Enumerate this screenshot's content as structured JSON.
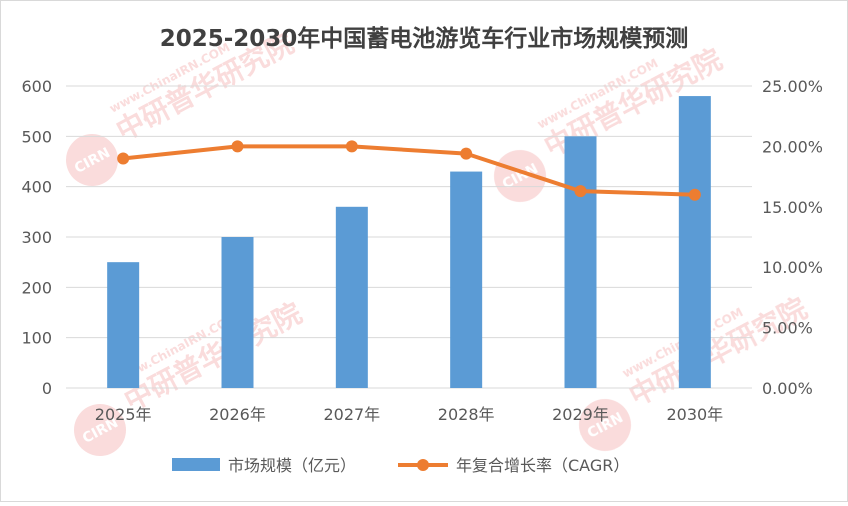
{
  "chart_data": {
    "type": "bar+line",
    "title": "2025-2030年中国蓄电池游览车行业市场规模预测",
    "categories": [
      "2025年",
      "2026年",
      "2027年",
      "2028年",
      "2029年",
      "2030年"
    ],
    "series": [
      {
        "name": "市场规模（亿元）",
        "type": "bar",
        "axis": "left",
        "values": [
          250,
          300,
          360,
          430,
          500,
          580
        ]
      },
      {
        "name": "年复合增长率（CAGR）",
        "type": "line",
        "axis": "right",
        "values": [
          0.19,
          0.2,
          0.2,
          0.194,
          0.163,
          0.16
        ]
      }
    ],
    "y_left": {
      "ylim": [
        0,
        600
      ],
      "ticks": [
        "0",
        "100",
        "200",
        "300",
        "400",
        "500",
        "600"
      ]
    },
    "y_right": {
      "ylim": [
        0,
        0.25
      ],
      "ticks": [
        "0.00%",
        "5.00%",
        "10.00%",
        "15.00%",
        "20.00%",
        "25.00%"
      ]
    },
    "grid": true,
    "legend_position": "bottom",
    "colors": {
      "bar": "#5b9bd5",
      "line": "#ed7d31",
      "grid": "#d9d9d9",
      "text": "#595959",
      "title": "#404040"
    }
  },
  "watermark": {
    "text": "中研普华研究院",
    "url": "www.ChinaIRN.COM",
    "logo": "CIRN"
  }
}
